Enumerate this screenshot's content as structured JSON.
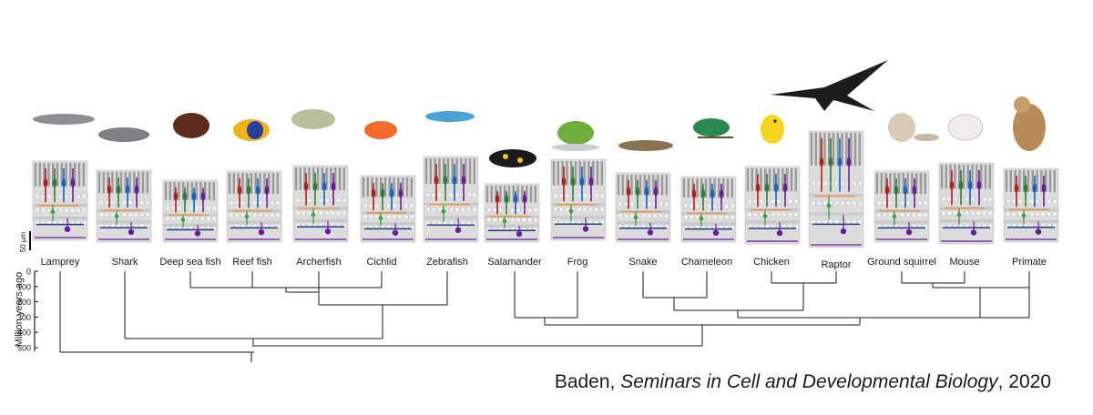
{
  "figure": {
    "scale_bar_label": "50 µm",
    "axis_label": "Million years ago",
    "axis_ticks": [
      "0",
      "100",
      "200",
      "300",
      "400",
      "500"
    ],
    "species": [
      {
        "name": "Lamprey"
      },
      {
        "name": "Shark"
      },
      {
        "name": "Deep sea fish"
      },
      {
        "name": "Reef fish"
      },
      {
        "name": "Archerfish"
      },
      {
        "name": "Cichlid"
      },
      {
        "name": "Zebrafish"
      },
      {
        "name": "Salamander"
      },
      {
        "name": "Frog"
      },
      {
        "name": "Snake"
      },
      {
        "name": "Chameleon"
      },
      {
        "name": "Chicken"
      },
      {
        "name": "Raptor"
      },
      {
        "name": "Ground squirrel"
      },
      {
        "name": "Mouse"
      },
      {
        "name": "Primate"
      }
    ],
    "cone_colors": [
      "#b71c1c",
      "#2e7d32",
      "#1565c0",
      "#6a1b9a"
    ],
    "neuron_colors": {
      "bipolar": "#43a047",
      "horizontal": "#ef8c2b",
      "amacrine": "#1e3a8a",
      "ganglion": "#6a1b9a"
    }
  },
  "citation": {
    "author": "Baden, ",
    "journal": "Seminars in Cell and Developmental Biology",
    "year": ", 2020"
  }
}
